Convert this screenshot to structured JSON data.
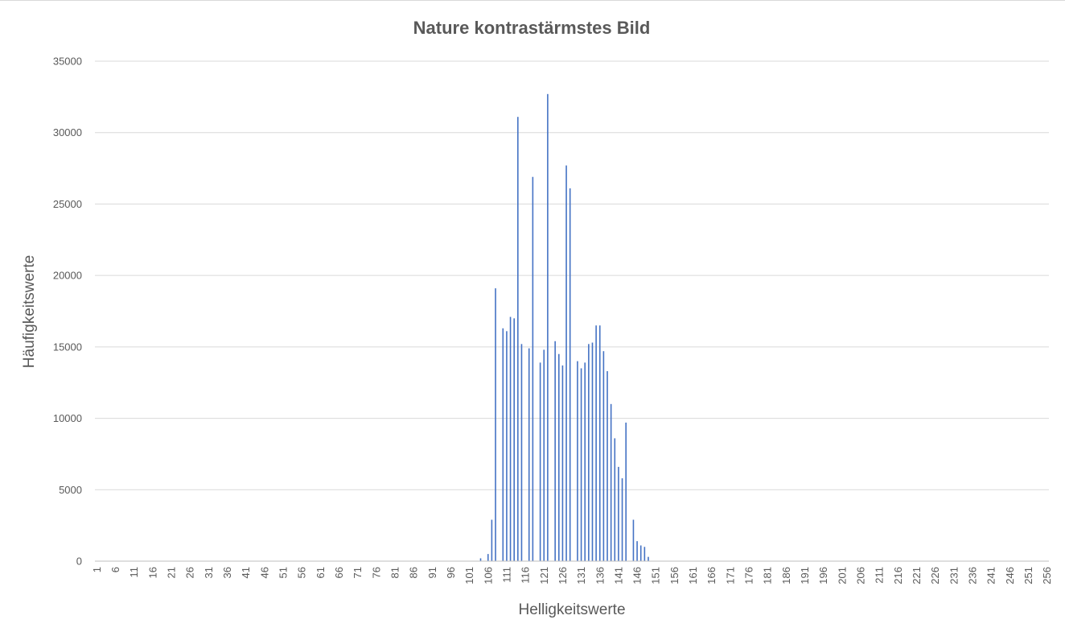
{
  "chart_data": {
    "type": "bar",
    "title": "Nature kontrastärmstes Bild",
    "xlabel": "Helligkeitswerte",
    "ylabel": "Häufigkeitswerte",
    "categories_range": [
      1,
      256
    ],
    "x_tick_labels": [
      "1",
      "6",
      "11",
      "16",
      "21",
      "26",
      "31",
      "36",
      "41",
      "46",
      "51",
      "56",
      "61",
      "66",
      "71",
      "76",
      "81",
      "86",
      "91",
      "96",
      "101",
      "106",
      "111",
      "116",
      "121",
      "126",
      "131",
      "136",
      "141",
      "146",
      "151",
      "156",
      "161",
      "166",
      "171",
      "176",
      "181",
      "186",
      "191",
      "196",
      "201",
      "206",
      "211",
      "216",
      "221",
      "226",
      "231",
      "236",
      "241",
      "246",
      "251",
      "256"
    ],
    "y_tick_labels": [
      "0",
      "5000",
      "10000",
      "15000",
      "20000",
      "25000",
      "30000",
      "35000"
    ],
    "ylim": [
      0,
      35000
    ],
    "grid": true,
    "legend": "none",
    "bar_color": "#4472c4",
    "gridline_color": "#d9d9d9",
    "axis_color": "#bfbfbf",
    "text_color": "#595959",
    "bars": [
      {
        "x": 104,
        "y": 200
      },
      {
        "x": 106,
        "y": 500
      },
      {
        "x": 107,
        "y": 2900
      },
      {
        "x": 108,
        "y": 19100
      },
      {
        "x": 110,
        "y": 16300
      },
      {
        "x": 111,
        "y": 16100
      },
      {
        "x": 112,
        "y": 17100
      },
      {
        "x": 113,
        "y": 17000
      },
      {
        "x": 114,
        "y": 31100
      },
      {
        "x": 115,
        "y": 15200
      },
      {
        "x": 117,
        "y": 14900
      },
      {
        "x": 118,
        "y": 26900
      },
      {
        "x": 120,
        "y": 13900
      },
      {
        "x": 121,
        "y": 14800
      },
      {
        "x": 122,
        "y": 32700
      },
      {
        "x": 124,
        "y": 15400
      },
      {
        "x": 125,
        "y": 14500
      },
      {
        "x": 126,
        "y": 13700
      },
      {
        "x": 127,
        "y": 27700
      },
      {
        "x": 128,
        "y": 26100
      },
      {
        "x": 130,
        "y": 14000
      },
      {
        "x": 131,
        "y": 13500
      },
      {
        "x": 132,
        "y": 13900
      },
      {
        "x": 133,
        "y": 15200
      },
      {
        "x": 134,
        "y": 15300
      },
      {
        "x": 135,
        "y": 16500
      },
      {
        "x": 136,
        "y": 16500
      },
      {
        "x": 137,
        "y": 14700
      },
      {
        "x": 138,
        "y": 13300
      },
      {
        "x": 139,
        "y": 11000
      },
      {
        "x": 140,
        "y": 8600
      },
      {
        "x": 141,
        "y": 6600
      },
      {
        "x": 142,
        "y": 5800
      },
      {
        "x": 143,
        "y": 9700
      },
      {
        "x": 145,
        "y": 2900
      },
      {
        "x": 146,
        "y": 1400
      },
      {
        "x": 147,
        "y": 1100
      },
      {
        "x": 148,
        "y": 1000
      },
      {
        "x": 149,
        "y": 300
      }
    ]
  }
}
